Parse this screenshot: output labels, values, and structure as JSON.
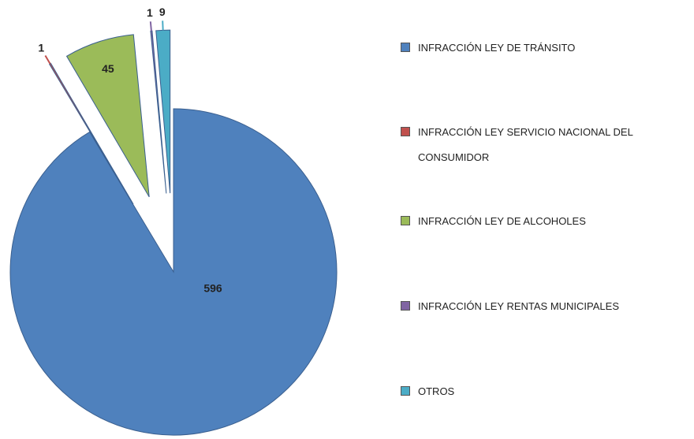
{
  "chart_data": {
    "type": "pie",
    "categories": [
      "INFRACCIÓN LEY DE TRÁNSITO",
      "INFRACCIÓN LEY SERVICIO  NACIONAL DEL CONSUMIDOR",
      "INFRACCIÓN LEY DE ALCOHOLES",
      "INFRACCIÓN LEY RENTAS MUNICIPALES",
      "OTROS"
    ],
    "values": [
      596,
      1,
      45,
      1,
      9
    ],
    "colors": [
      "#4f81bd",
      "#c0504d",
      "#9bbb59",
      "#8064a2",
      "#4bacc6"
    ],
    "legend": "right"
  }
}
